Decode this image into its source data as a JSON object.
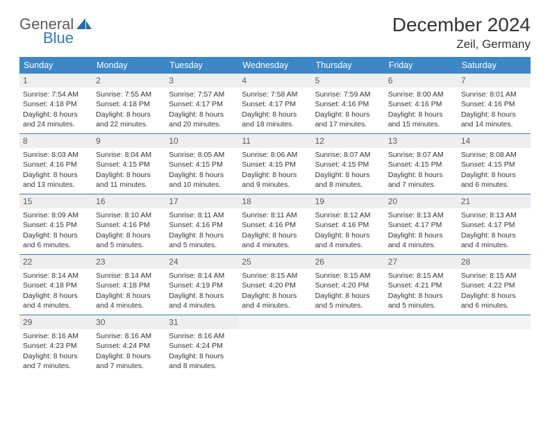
{
  "brand": {
    "line1": "General",
    "line2": "Blue"
  },
  "title": "December 2024",
  "location": "Zeil, Germany",
  "weekdays": [
    "Sunday",
    "Monday",
    "Tuesday",
    "Wednesday",
    "Thursday",
    "Friday",
    "Saturday"
  ],
  "colors": {
    "header_bg": "#3b87c8",
    "header_text": "#ffffff",
    "daynum_bg": "#eeeeee",
    "week_border": "#3b7ab2",
    "text": "#333333",
    "brand_gray": "#5a5a5a",
    "brand_blue": "#2a7bbf"
  },
  "weeks": [
    [
      {
        "n": "1",
        "sr": "Sunrise: 7:54 AM",
        "ss": "Sunset: 4:18 PM",
        "d1": "Daylight: 8 hours",
        "d2": "and 24 minutes."
      },
      {
        "n": "2",
        "sr": "Sunrise: 7:55 AM",
        "ss": "Sunset: 4:18 PM",
        "d1": "Daylight: 8 hours",
        "d2": "and 22 minutes."
      },
      {
        "n": "3",
        "sr": "Sunrise: 7:57 AM",
        "ss": "Sunset: 4:17 PM",
        "d1": "Daylight: 8 hours",
        "d2": "and 20 minutes."
      },
      {
        "n": "4",
        "sr": "Sunrise: 7:58 AM",
        "ss": "Sunset: 4:17 PM",
        "d1": "Daylight: 8 hours",
        "d2": "and 18 minutes."
      },
      {
        "n": "5",
        "sr": "Sunrise: 7:59 AM",
        "ss": "Sunset: 4:16 PM",
        "d1": "Daylight: 8 hours",
        "d2": "and 17 minutes."
      },
      {
        "n": "6",
        "sr": "Sunrise: 8:00 AM",
        "ss": "Sunset: 4:16 PM",
        "d1": "Daylight: 8 hours",
        "d2": "and 15 minutes."
      },
      {
        "n": "7",
        "sr": "Sunrise: 8:01 AM",
        "ss": "Sunset: 4:16 PM",
        "d1": "Daylight: 8 hours",
        "d2": "and 14 minutes."
      }
    ],
    [
      {
        "n": "8",
        "sr": "Sunrise: 8:03 AM",
        "ss": "Sunset: 4:16 PM",
        "d1": "Daylight: 8 hours",
        "d2": "and 13 minutes."
      },
      {
        "n": "9",
        "sr": "Sunrise: 8:04 AM",
        "ss": "Sunset: 4:15 PM",
        "d1": "Daylight: 8 hours",
        "d2": "and 11 minutes."
      },
      {
        "n": "10",
        "sr": "Sunrise: 8:05 AM",
        "ss": "Sunset: 4:15 PM",
        "d1": "Daylight: 8 hours",
        "d2": "and 10 minutes."
      },
      {
        "n": "11",
        "sr": "Sunrise: 8:06 AM",
        "ss": "Sunset: 4:15 PM",
        "d1": "Daylight: 8 hours",
        "d2": "and 9 minutes."
      },
      {
        "n": "12",
        "sr": "Sunrise: 8:07 AM",
        "ss": "Sunset: 4:15 PM",
        "d1": "Daylight: 8 hours",
        "d2": "and 8 minutes."
      },
      {
        "n": "13",
        "sr": "Sunrise: 8:07 AM",
        "ss": "Sunset: 4:15 PM",
        "d1": "Daylight: 8 hours",
        "d2": "and 7 minutes."
      },
      {
        "n": "14",
        "sr": "Sunrise: 8:08 AM",
        "ss": "Sunset: 4:15 PM",
        "d1": "Daylight: 8 hours",
        "d2": "and 6 minutes."
      }
    ],
    [
      {
        "n": "15",
        "sr": "Sunrise: 8:09 AM",
        "ss": "Sunset: 4:15 PM",
        "d1": "Daylight: 8 hours",
        "d2": "and 6 minutes."
      },
      {
        "n": "16",
        "sr": "Sunrise: 8:10 AM",
        "ss": "Sunset: 4:16 PM",
        "d1": "Daylight: 8 hours",
        "d2": "and 5 minutes."
      },
      {
        "n": "17",
        "sr": "Sunrise: 8:11 AM",
        "ss": "Sunset: 4:16 PM",
        "d1": "Daylight: 8 hours",
        "d2": "and 5 minutes."
      },
      {
        "n": "18",
        "sr": "Sunrise: 8:11 AM",
        "ss": "Sunset: 4:16 PM",
        "d1": "Daylight: 8 hours",
        "d2": "and 4 minutes."
      },
      {
        "n": "19",
        "sr": "Sunrise: 8:12 AM",
        "ss": "Sunset: 4:16 PM",
        "d1": "Daylight: 8 hours",
        "d2": "and 4 minutes."
      },
      {
        "n": "20",
        "sr": "Sunrise: 8:13 AM",
        "ss": "Sunset: 4:17 PM",
        "d1": "Daylight: 8 hours",
        "d2": "and 4 minutes."
      },
      {
        "n": "21",
        "sr": "Sunrise: 8:13 AM",
        "ss": "Sunset: 4:17 PM",
        "d1": "Daylight: 8 hours",
        "d2": "and 4 minutes."
      }
    ],
    [
      {
        "n": "22",
        "sr": "Sunrise: 8:14 AM",
        "ss": "Sunset: 4:18 PM",
        "d1": "Daylight: 8 hours",
        "d2": "and 4 minutes."
      },
      {
        "n": "23",
        "sr": "Sunrise: 8:14 AM",
        "ss": "Sunset: 4:18 PM",
        "d1": "Daylight: 8 hours",
        "d2": "and 4 minutes."
      },
      {
        "n": "24",
        "sr": "Sunrise: 8:14 AM",
        "ss": "Sunset: 4:19 PM",
        "d1": "Daylight: 8 hours",
        "d2": "and 4 minutes."
      },
      {
        "n": "25",
        "sr": "Sunrise: 8:15 AM",
        "ss": "Sunset: 4:20 PM",
        "d1": "Daylight: 8 hours",
        "d2": "and 4 minutes."
      },
      {
        "n": "26",
        "sr": "Sunrise: 8:15 AM",
        "ss": "Sunset: 4:20 PM",
        "d1": "Daylight: 8 hours",
        "d2": "and 5 minutes."
      },
      {
        "n": "27",
        "sr": "Sunrise: 8:15 AM",
        "ss": "Sunset: 4:21 PM",
        "d1": "Daylight: 8 hours",
        "d2": "and 5 minutes."
      },
      {
        "n": "28",
        "sr": "Sunrise: 8:15 AM",
        "ss": "Sunset: 4:22 PM",
        "d1": "Daylight: 8 hours",
        "d2": "and 6 minutes."
      }
    ],
    [
      {
        "n": "29",
        "sr": "Sunrise: 8:16 AM",
        "ss": "Sunset: 4:23 PM",
        "d1": "Daylight: 8 hours",
        "d2": "and 7 minutes."
      },
      {
        "n": "30",
        "sr": "Sunrise: 8:16 AM",
        "ss": "Sunset: 4:24 PM",
        "d1": "Daylight: 8 hours",
        "d2": "and 7 minutes."
      },
      {
        "n": "31",
        "sr": "Sunrise: 8:16 AM",
        "ss": "Sunset: 4:24 PM",
        "d1": "Daylight: 8 hours",
        "d2": "and 8 minutes."
      },
      {
        "empty": true
      },
      {
        "empty": true
      },
      {
        "empty": true
      },
      {
        "empty": true
      }
    ]
  ]
}
